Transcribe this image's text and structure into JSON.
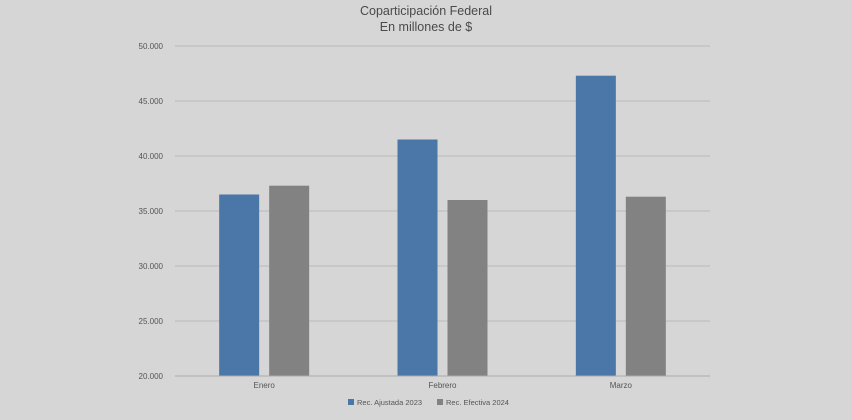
{
  "chart_data": {
    "type": "bar",
    "title": "Coparticipación Federal",
    "subtitle": "En millones de $",
    "categories": [
      "Enero",
      "Febrero",
      "Marzo"
    ],
    "series": [
      {
        "name": "Rec. Ajustada 2023",
        "color": "#4a77a8",
        "values": [
          36500,
          41500,
          47300
        ]
      },
      {
        "name": "Rec. Efectiva 2024",
        "color": "#828282",
        "values": [
          37300,
          36000,
          36300
        ]
      }
    ],
    "ylim": [
      20000,
      50000
    ],
    "yticks": [
      "20.000",
      "25.000",
      "30.000",
      "35.000",
      "40.000",
      "45.000",
      "50.000"
    ],
    "ytick_values": [
      20000,
      25000,
      30000,
      35000,
      40000,
      45000,
      50000
    ],
    "grid": true,
    "legend_position": "bottom"
  }
}
